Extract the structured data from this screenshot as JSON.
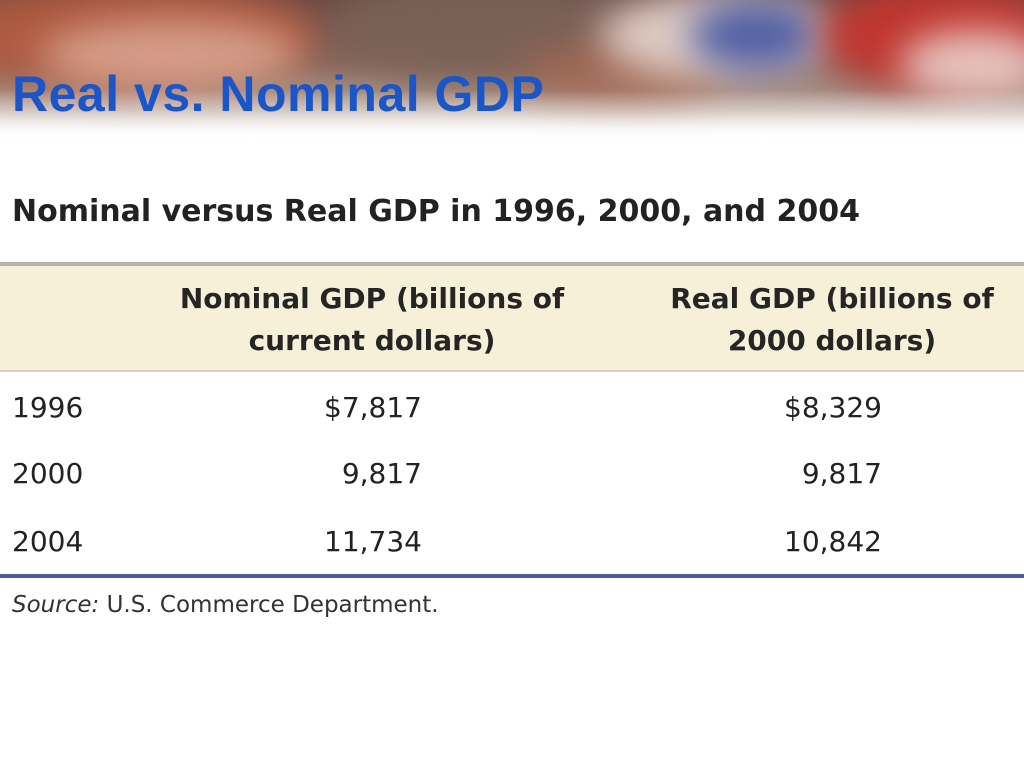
{
  "slide": {
    "title": "Real vs. Nominal GDP"
  },
  "table": {
    "title": "Nominal versus Real GDP in 1996, 2000, and 2004",
    "headers": {
      "nominal_line1": "Nominal GDP (billions of",
      "nominal_line2": "current dollars)",
      "real_line1": "Real GDP (billions of",
      "real_line2": "2000 dollars)"
    },
    "rows": [
      {
        "year": "1996",
        "nominal": "$7,817",
        "real": "$8,329"
      },
      {
        "year": "2000",
        "nominal": "9,817",
        "real": "9,817"
      },
      {
        "year": "2004",
        "nominal": "11,734",
        "real": "10,842"
      }
    ],
    "source_label": "Source:",
    "source_text": "U.S. Commerce Department."
  },
  "colors": {
    "title_blue": "#1a56c8",
    "header_fill": "#f7f0d9",
    "bottom_rule": "#4a5aa8"
  }
}
